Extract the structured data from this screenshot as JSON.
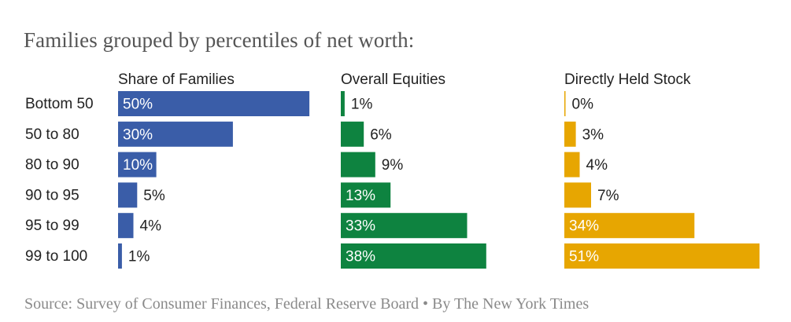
{
  "chart_data": {
    "type": "bar",
    "title": "Families grouped by percentiles of net worth:",
    "source": "Source: Survey of Consumer Finances, Federal Reserve Board • By The New York Times",
    "categories": [
      "Bottom 50",
      "50 to 80",
      "80 to 90",
      "90 to 95",
      "95 to 99",
      "99 to 100"
    ],
    "series": [
      {
        "name": "Share of Families",
        "values": [
          50,
          30,
          10,
          5,
          4,
          1
        ],
        "labels": [
          "50%",
          "30%",
          "10%",
          "5%",
          "4%",
          "1%"
        ],
        "color": "#3a5da8"
      },
      {
        "name": "Overall Equities",
        "values": [
          1,
          6,
          9,
          13,
          33,
          38
        ],
        "labels": [
          "1%",
          "6%",
          "9%",
          "13%",
          "33%",
          "38%"
        ],
        "color": "#0e8340"
      },
      {
        "name": "Directly Held Stock",
        "values": [
          0,
          3,
          4,
          7,
          34,
          51
        ],
        "labels": [
          "0%",
          "3%",
          "4%",
          "7%",
          "34%",
          "51%"
        ],
        "color": "#e7a601"
      }
    ],
    "xlim": [
      0,
      51
    ],
    "grid": false,
    "legend": "column headers above each panel"
  }
}
